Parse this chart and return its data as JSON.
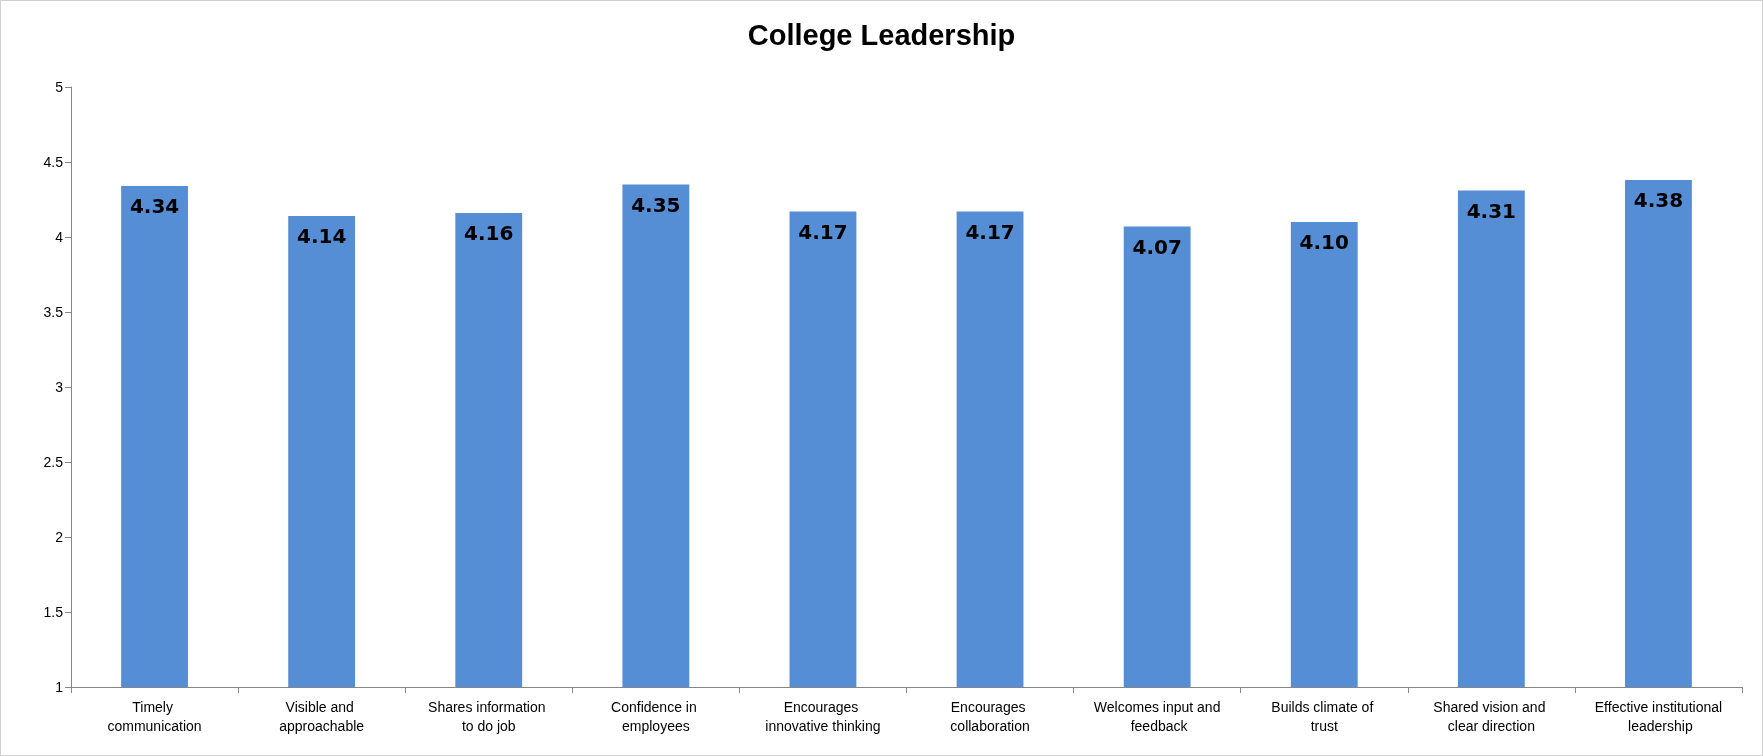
{
  "chart_data": {
    "type": "bar",
    "title": "College Leadership",
    "categories": [
      "Timely communication",
      "Visible and approachable",
      "Shares information to do job",
      "Confidence in employees",
      "Encourages innovative thinking",
      "Encourages collaboration",
      "Welcomes input and feedback",
      "Builds climate of trust",
      "Shared vision and clear direction",
      "Effective institutional leadership"
    ],
    "values": [
      4.34,
      4.14,
      4.16,
      4.35,
      4.17,
      4.17,
      4.07,
      4.1,
      4.31,
      4.38
    ],
    "value_labels": [
      "4.34",
      "4.14",
      "4.16",
      "4.35",
      "4.17",
      "4.17",
      "4.07",
      "4.10",
      "4.31",
      "4.38"
    ],
    "color": "#558ed5",
    "ylim": [
      1,
      5
    ],
    "yticks": [
      1,
      1.5,
      2,
      2.5,
      3,
      3.5,
      4,
      4.5,
      5
    ],
    "grid": false
  }
}
